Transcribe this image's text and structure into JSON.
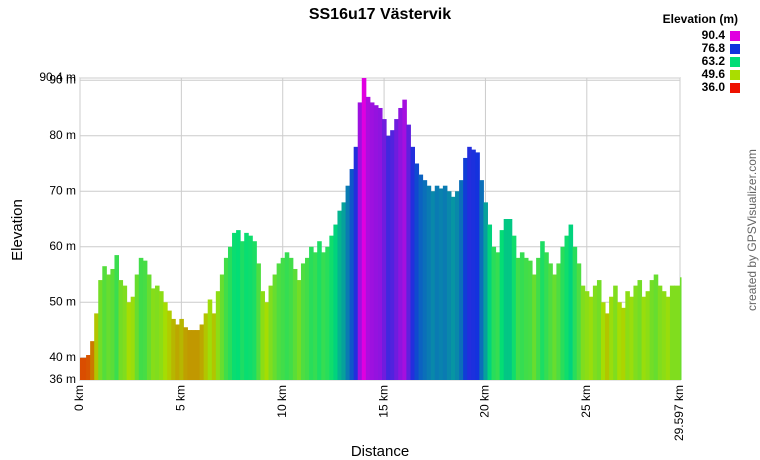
{
  "chart_data": {
    "type": "area",
    "title": "SS16u17 Västervik",
    "x_label": "Distance",
    "y_label": "Elevation",
    "credit": "created by GPSVisualizer.com",
    "x": [
      0,
      0.3,
      0.5,
      0.7,
      0.9,
      1.1,
      1.3,
      1.5,
      1.7,
      1.9,
      2.1,
      2.3,
      2.5,
      2.7,
      2.9,
      3.1,
      3.3,
      3.5,
      3.7,
      3.9,
      4.1,
      4.3,
      4.5,
      4.7,
      4.9,
      5.1,
      5.3,
      5.5,
      5.7,
      5.9,
      6.1,
      6.3,
      6.5,
      6.7,
      6.9,
      7.1,
      7.3,
      7.5,
      7.7,
      7.9,
      8.1,
      8.3,
      8.5,
      8.7,
      8.9,
      9.1,
      9.3,
      9.5,
      9.7,
      9.9,
      10.1,
      10.3,
      10.5,
      10.7,
      10.9,
      11.1,
      11.3,
      11.5,
      11.7,
      11.9,
      12.1,
      12.3,
      12.5,
      12.7,
      12.9,
      13.1,
      13.3,
      13.5,
      13.7,
      13.9,
      14.1,
      14.3,
      14.5,
      14.7,
      14.9,
      15.1,
      15.3,
      15.5,
      15.7,
      15.9,
      16.1,
      16.3,
      16.5,
      16.7,
      16.9,
      17.1,
      17.3,
      17.5,
      17.7,
      17.9,
      18.1,
      18.3,
      18.5,
      18.7,
      18.9,
      19.1,
      19.3,
      19.5,
      19.7,
      19.9,
      20.1,
      20.3,
      20.5,
      20.7,
      20.9,
      21.1,
      21.3,
      21.5,
      21.7,
      21.9,
      22.1,
      22.3,
      22.5,
      22.7,
      22.9,
      23.1,
      23.3,
      23.5,
      23.7,
      23.9,
      24.1,
      24.3,
      24.5,
      24.7,
      24.9,
      25.1,
      25.3,
      25.5,
      25.7,
      25.9,
      26.1,
      26.3,
      26.5,
      26.7,
      26.9,
      27.1,
      27.3,
      27.5,
      27.7,
      27.9,
      28.1,
      28.3,
      28.5,
      28.7,
      28.9,
      29.1,
      29.3,
      29.597
    ],
    "values": [
      40,
      40.5,
      43,
      48,
      54,
      56.5,
      55,
      56,
      58.5,
      54,
      53,
      50,
      51,
      55,
      58,
      57.5,
      55,
      52.5,
      53,
      52,
      50,
      48.5,
      47,
      46,
      47,
      45.5,
      45,
      45,
      45,
      46,
      48,
      50.5,
      48,
      52,
      55,
      58,
      60,
      62.5,
      63,
      61,
      62.5,
      62,
      61,
      57,
      52,
      50,
      53,
      55,
      57,
      58,
      59,
      58,
      56,
      54,
      57,
      58,
      60,
      59,
      61,
      59,
      60,
      62,
      64,
      66.5,
      68,
      71,
      74,
      78,
      86,
      90.4,
      87,
      86,
      85.5,
      85,
      83,
      80,
      81,
      83,
      85,
      86.5,
      82,
      78,
      75,
      73,
      72,
      71,
      70,
      71,
      70.5,
      71,
      70,
      69,
      70,
      72,
      76,
      78,
      77.5,
      77,
      72,
      68,
      64,
      60,
      59,
      63,
      65,
      65,
      62,
      58,
      59,
      58,
      57.5,
      55,
      58,
      61,
      59,
      57,
      55,
      57,
      60,
      62,
      64,
      60,
      57,
      53,
      52,
      51,
      53,
      54,
      50,
      48,
      51,
      53,
      50,
      49,
      52,
      51,
      53,
      54,
      51,
      52,
      54,
      55,
      53,
      52,
      51,
      53,
      53,
      54.5
    ],
    "xlim": [
      0,
      29.597
    ],
    "ylim": [
      36,
      90.4
    ],
    "xticks": [
      {
        "value": 0,
        "label": "0 km"
      },
      {
        "value": 5,
        "label": "5 km"
      },
      {
        "value": 10,
        "label": "10 km"
      },
      {
        "value": 15,
        "label": "15 km"
      },
      {
        "value": 20,
        "label": "20 km"
      },
      {
        "value": 25,
        "label": "25 km"
      },
      {
        "value": 29.597,
        "label": "29.597 km"
      }
    ],
    "yticks": [
      {
        "value": 36,
        "label": "36 m"
      },
      {
        "value": 40,
        "label": "40 m"
      },
      {
        "value": 50,
        "label": "50 m"
      },
      {
        "value": 60,
        "label": "60 m"
      },
      {
        "value": 70,
        "label": "70 m"
      },
      {
        "value": 80,
        "label": "80 m"
      },
      {
        "value": 90,
        "label": "90 m"
      },
      {
        "value": 90.4,
        "label": "90.4 m"
      }
    ],
    "grid": true,
    "legend": {
      "title": "Elevation (m)",
      "items": [
        {
          "value": 90.4,
          "label": "90.4",
          "color": "#e000e0"
        },
        {
          "value": 76.8,
          "label": "76.8",
          "color": "#1133dd"
        },
        {
          "value": 63.2,
          "label": "63.2",
          "color": "#00dd77"
        },
        {
          "value": 49.6,
          "label": "49.6",
          "color": "#aadd00"
        },
        {
          "value": 36,
          "label": "36.0",
          "color": "#ee1100"
        }
      ]
    }
  }
}
